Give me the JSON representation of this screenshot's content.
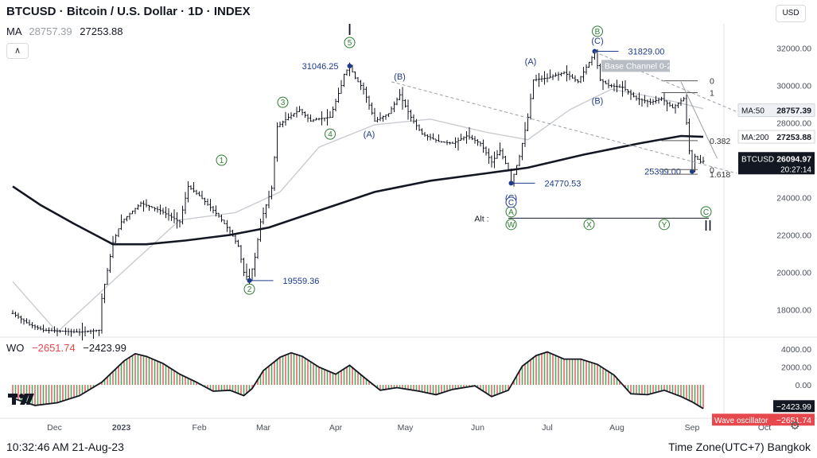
{
  "header": {
    "title": "BTCUSD · Bitcoin / U.S. Dollar · 1D · INDEX",
    "ma_label": "MA",
    "ma_value_1": "28757.39",
    "ma_value_2": "27253.88",
    "currency": "USD"
  },
  "oscillator": {
    "label": "WO",
    "value_1": "−2651.74",
    "value_2": "−2423.99",
    "badge_1": "−2423.99",
    "badge_2_name": "Wave oscillator",
    "badge_2_value": "−2651.74"
  },
  "footer": {
    "time": "10:32:46 AM 21-Aug-23",
    "timezone": "Time Zone(UTC+7) Bangkok"
  },
  "chart_data": {
    "type": "line",
    "symbol": "BTCUSD",
    "timeframe": "1D",
    "x_labels": [
      "Dec",
      "2023",
      "Feb",
      "Mar",
      "Apr",
      "May",
      "Jun",
      "Jul",
      "Aug",
      "Sep",
      "Oct"
    ],
    "y_ticks": [
      "32000.00",
      "30000.00",
      "28000.00",
      "26000.00",
      "24000.00",
      "22000.00",
      "20000.00",
      "18000.00"
    ],
    "ylim": [
      16700,
      33300
    ],
    "price_path": [
      [
        0,
        17800
      ],
      [
        6,
        17200
      ],
      [
        11,
        16900
      ],
      [
        24,
        16800
      ],
      [
        31,
        16900
      ],
      [
        32,
        18600
      ],
      [
        36,
        21600
      ],
      [
        39,
        22700
      ],
      [
        46,
        23700
      ],
      [
        53,
        23300
      ],
      [
        60,
        22700
      ],
      [
        63,
        24600
      ],
      [
        67,
        24100
      ],
      [
        74,
        23000
      ],
      [
        78,
        22200
      ],
      [
        81,
        21400
      ],
      [
        83,
        20000
      ],
      [
        85,
        19559
      ],
      [
        87,
        20800
      ],
      [
        89,
        22700
      ],
      [
        93,
        24500
      ],
      [
        95,
        27800
      ],
      [
        99,
        28300
      ],
      [
        103,
        28700
      ],
      [
        107,
        28100
      ],
      [
        109,
        28200
      ],
      [
        114,
        28300
      ],
      [
        118,
        30000
      ],
      [
        119,
        30600
      ],
      [
        121,
        31046
      ],
      [
        123,
        30400
      ],
      [
        126,
        29800
      ],
      [
        130,
        28100
      ],
      [
        135,
        28500
      ],
      [
        139,
        29500
      ],
      [
        143,
        28300
      ],
      [
        147,
        27400
      ],
      [
        153,
        27000
      ],
      [
        158,
        26900
      ],
      [
        163,
        27300
      ],
      [
        168,
        26900
      ],
      [
        172,
        25900
      ],
      [
        175,
        26500
      ],
      [
        178,
        25500
      ],
      [
        179,
        24770
      ],
      [
        182,
        26200
      ],
      [
        185,
        28300
      ],
      [
        187,
        30300
      ],
      [
        192,
        30400
      ],
      [
        198,
        30700
      ],
      [
        203,
        30200
      ],
      [
        208,
        31500
      ],
      [
        209,
        31829
      ],
      [
        211,
        30300
      ],
      [
        214,
        30000
      ],
      [
        219,
        29900
      ],
      [
        224,
        29300
      ],
      [
        229,
        29100
      ],
      [
        233,
        29300
      ],
      [
        237,
        28800
      ],
      [
        241,
        29300
      ],
      [
        242,
        28000
      ],
      [
        243,
        26500
      ],
      [
        244,
        25399
      ],
      [
        245,
        26200
      ],
      [
        247,
        25900
      ],
      [
        248,
        25950
      ]
    ],
    "series": [
      {
        "name": "MA:50",
        "last_value": "28757.39",
        "color": "#c9ccd1",
        "points": [
          [
            0,
            19500
          ],
          [
            16,
            16800
          ],
          [
            32,
            19000
          ],
          [
            60,
            22800
          ],
          [
            80,
            23200
          ],
          [
            96,
            24300
          ],
          [
            110,
            26700
          ],
          [
            130,
            27900
          ],
          [
            150,
            28200
          ],
          [
            170,
            27500
          ],
          [
            185,
            27100
          ],
          [
            200,
            28700
          ],
          [
            215,
            29800
          ],
          [
            233,
            29300
          ],
          [
            248,
            28757
          ]
        ]
      },
      {
        "name": "MA:200",
        "last_value": "27253.88",
        "color": "#131722",
        "points": [
          [
            0,
            24600
          ],
          [
            10,
            23600
          ],
          [
            22,
            22600
          ],
          [
            36,
            21500
          ],
          [
            48,
            21500
          ],
          [
            62,
            21700
          ],
          [
            78,
            22000
          ],
          [
            92,
            22400
          ],
          [
            110,
            23300
          ],
          [
            130,
            24300
          ],
          [
            150,
            24900
          ],
          [
            170,
            25300
          ],
          [
            185,
            25600
          ],
          [
            205,
            26300
          ],
          [
            225,
            26900
          ],
          [
            240,
            27300
          ],
          [
            248,
            27253
          ]
        ]
      }
    ],
    "last_price_badge": {
      "symbol": "BTCUSD",
      "price": "26094.97",
      "countdown": "20:27:14"
    },
    "levels": [
      {
        "label": "31046.25",
        "x": 121,
        "y": 31046
      },
      {
        "label": "31829.00",
        "x": 209,
        "y": 31829
      },
      {
        "label": "25399.00",
        "x": 244,
        "y": 25399
      },
      {
        "label": "24770.53",
        "x": 179,
        "y": 24770
      },
      {
        "label": "19559.36",
        "x": 85,
        "y": 19559
      }
    ],
    "wave_labels": [
      {
        "text": "1",
        "x": 75,
        "y": 26000,
        "circle": true
      },
      {
        "text": "2",
        "x": 85,
        "y": 19100,
        "circle": true
      },
      {
        "text": "3",
        "x": 97,
        "y": 29100,
        "circle": true
      },
      {
        "text": "4",
        "x": 114,
        "y": 27400,
        "circle": true
      },
      {
        "text": "5",
        "x": 121,
        "y": 32300,
        "circle": true
      },
      {
        "text": "(A)",
        "x": 128,
        "y": 27400,
        "circle": false
      },
      {
        "text": "(B)",
        "x": 139,
        "y": 30500,
        "circle": false
      },
      {
        "text": "(C)",
        "x": 179,
        "y": 24000,
        "circle": false
      },
      {
        "text": "(A)",
        "x": 186,
        "y": 31300,
        "circle": false
      },
      {
        "text": "(B)",
        "x": 210,
        "y": 32900,
        "circle": true
      },
      {
        "text": "(C)",
        "x": 210,
        "y": 32400,
        "circle": false
      },
      {
        "text": "(B)",
        "x": 210,
        "y": 29200,
        "circle": false
      }
    ],
    "fib_levels": [
      {
        "label": "0",
        "y": 30250
      },
      {
        "label": "1",
        "y": 29620
      },
      {
        "label": "0.382",
        "y": 27050
      },
      {
        "label": "0",
        "y": 25500
      },
      {
        "label": "1.618",
        "y": 25250
      }
    ],
    "annotations": {
      "base_channel": "Base Channel 0-2",
      "wave_I": "I",
      "wave_II": "II",
      "alt_label": "Alt :",
      "alt_C": "C",
      "alt_A": "A",
      "alt_W": "W",
      "alt_X": "X",
      "alt_Y": "Y",
      "alt_C_end": "C"
    },
    "oscillator_data": {
      "name": "Wave oscillator",
      "ylim": [
        -3200,
        5000
      ],
      "y_ticks": [
        "4000.00",
        "2000.00",
        "0.00"
      ],
      "values": [
        [
          0,
          -1500
        ],
        [
          8,
          -2300
        ],
        [
          16,
          -2000
        ],
        [
          24,
          -1200
        ],
        [
          32,
          300
        ],
        [
          40,
          2700
        ],
        [
          44,
          3500
        ],
        [
          48,
          3200
        ],
        [
          54,
          2400
        ],
        [
          60,
          1200
        ],
        [
          66,
          300
        ],
        [
          72,
          -700
        ],
        [
          78,
          -600
        ],
        [
          83,
          -1200
        ],
        [
          86,
          -400
        ],
        [
          90,
          1600
        ],
        [
          96,
          3100
        ],
        [
          100,
          3600
        ],
        [
          104,
          3200
        ],
        [
          110,
          2000
        ],
        [
          116,
          1200
        ],
        [
          121,
          2200
        ],
        [
          126,
          900
        ],
        [
          132,
          -600
        ],
        [
          138,
          -300
        ],
        [
          146,
          -700
        ],
        [
          152,
          -1100
        ],
        [
          158,
          -500
        ],
        [
          166,
          -100
        ],
        [
          172,
          -1300
        ],
        [
          178,
          -600
        ],
        [
          183,
          2100
        ],
        [
          188,
          3300
        ],
        [
          192,
          3700
        ],
        [
          198,
          2900
        ],
        [
          204,
          2900
        ],
        [
          210,
          2300
        ],
        [
          216,
          1100
        ],
        [
          222,
          -1000
        ],
        [
          228,
          -1100
        ],
        [
          234,
          -600
        ],
        [
          240,
          -1300
        ],
        [
          244,
          -1900
        ],
        [
          248,
          -2651
        ]
      ]
    }
  }
}
